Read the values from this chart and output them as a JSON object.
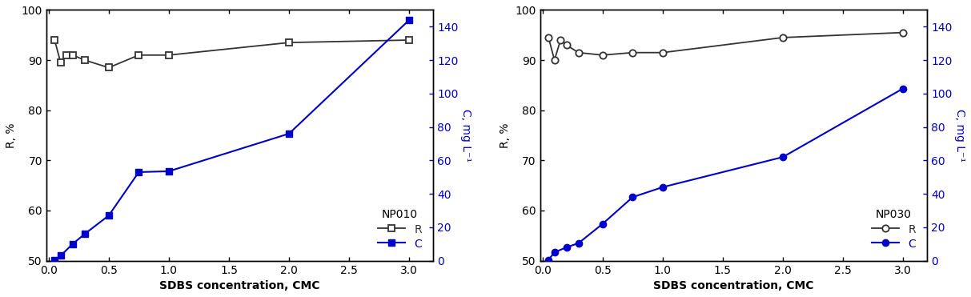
{
  "np010": {
    "R_x": [
      0.05,
      0.1,
      0.15,
      0.2,
      0.3,
      0.5,
      0.75,
      1.0,
      2.0,
      3.0
    ],
    "R_y": [
      94.0,
      89.5,
      91.0,
      91.0,
      90.0,
      88.5,
      91.0,
      91.0,
      93.5,
      94.0
    ],
    "C_x": [
      0.05,
      0.1,
      0.2,
      0.3,
      0.5,
      0.75,
      1.0,
      2.0,
      3.0
    ],
    "C_y": [
      0.5,
      3.0,
      10.0,
      16.0,
      27.0,
      53.0,
      53.5,
      76.0,
      144.0
    ],
    "label": "NP010",
    "R_marker": "s",
    "C_marker": "s"
  },
  "np030": {
    "R_x": [
      0.05,
      0.1,
      0.15,
      0.2,
      0.3,
      0.5,
      0.75,
      1.0,
      2.0,
      3.0
    ],
    "R_y": [
      94.5,
      90.0,
      94.0,
      93.0,
      91.5,
      91.0,
      91.5,
      91.5,
      94.5,
      95.5
    ],
    "C_x": [
      0.05,
      0.1,
      0.2,
      0.3,
      0.5,
      0.75,
      1.0,
      2.0,
      3.0
    ],
    "C_y": [
      0.5,
      5.0,
      8.0,
      10.5,
      22.0,
      38.0,
      44.0,
      62.0,
      103.0
    ],
    "label": "NP030",
    "R_marker": "o",
    "C_marker": "o"
  },
  "R_color": "#333333",
  "C_color": "#0000cc",
  "R_ylim": [
    50,
    100
  ],
  "C_ylim": [
    0,
    150
  ],
  "R_yticks": [
    50,
    60,
    70,
    80,
    90,
    100
  ],
  "C_yticks": [
    0,
    20,
    40,
    60,
    80,
    100,
    120,
    140
  ],
  "xlim": [
    -0.02,
    3.2
  ],
  "xticks": [
    0.0,
    0.5,
    1.0,
    1.5,
    2.0,
    2.5,
    3.0
  ],
  "xlabel": "SDBS concentration, CMC",
  "ylabel_left": "R, %",
  "ylabel_right": "C, mg L⁻¹",
  "bg_color": "#ffffff",
  "figsize": [
    12.13,
    3.71
  ],
  "dpi": 100
}
